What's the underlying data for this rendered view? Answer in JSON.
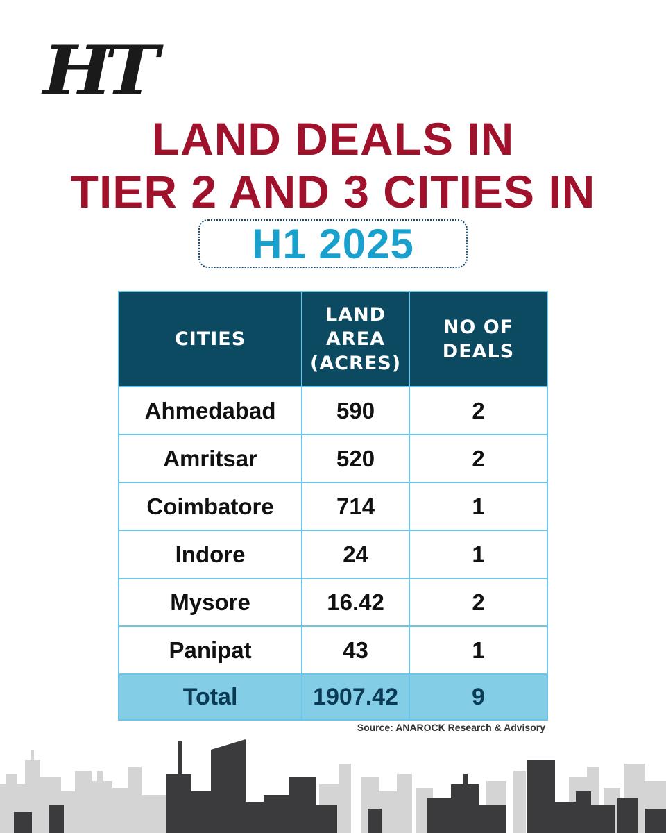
{
  "brand": {
    "logo_text": "HT"
  },
  "title_line1": "LAND DEALS IN",
  "title_line2": "TIER 2 AND 3 CITIES IN",
  "subtitle": "H1 2025",
  "source": "Source: ANAROCK Research & Advisory",
  "colors": {
    "title": "#a0112b",
    "subtitle": "#1aa0cc",
    "header_bg": "#0b4a60",
    "grid": "#6cc4e6",
    "total_bg": "#84cde6"
  },
  "chart_data": {
    "type": "table",
    "columns": [
      "CITIES",
      "LAND AREA (ACRES)",
      "NO OF DEALS"
    ],
    "header_lines": [
      [
        "CITIES"
      ],
      [
        "LAND",
        "AREA",
        "(ACRES)"
      ],
      [
        "NO OF DEALS"
      ]
    ],
    "rows": [
      [
        "Ahmedabad",
        "590",
        "2"
      ],
      [
        "Amritsar",
        "520",
        "2"
      ],
      [
        "Coimbatore",
        "714",
        "1"
      ],
      [
        "Indore",
        "24",
        "1"
      ],
      [
        "Mysore",
        "16.42",
        "2"
      ],
      [
        "Panipat",
        "43",
        "1"
      ]
    ],
    "total": [
      "Total",
      "1907.42",
      "9"
    ]
  }
}
